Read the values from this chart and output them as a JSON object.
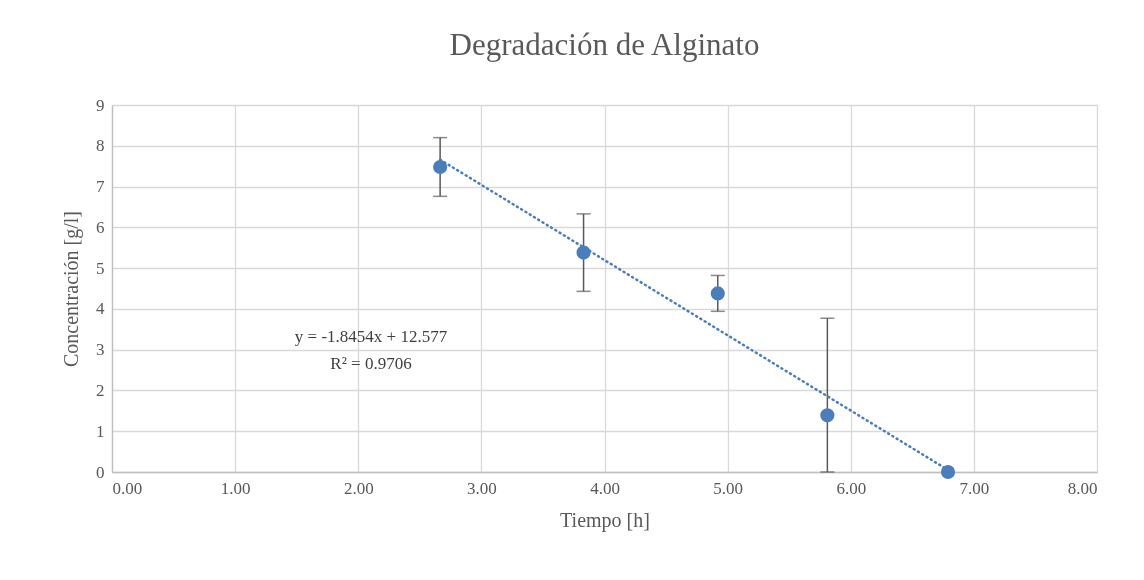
{
  "chart_data": {
    "type": "scatter",
    "title": "Degradación de Alginato",
    "xlabel": "Tiempo [h]",
    "ylabel": "Concentración [g/l]",
    "xlim": [
      0,
      8
    ],
    "xticks": [
      {
        "value": 0,
        "label": "0.00"
      },
      {
        "value": 1,
        "label": "1.00"
      },
      {
        "value": 2,
        "label": "2.00"
      },
      {
        "value": 3,
        "label": "3.00"
      },
      {
        "value": 4,
        "label": "4.00"
      },
      {
        "value": 5,
        "label": "5.00"
      },
      {
        "value": 6,
        "label": "6.00"
      },
      {
        "value": 7,
        "label": "7.00"
      },
      {
        "value": 8,
        "label": "8.00"
      }
    ],
    "ylim": [
      0,
      9
    ],
    "yticks": [
      0,
      1,
      2,
      3,
      4,
      5,
      6,
      7,
      8,
      9
    ],
    "grid": true,
    "marker": "circle",
    "series": [
      {
        "color": "#4a7ebb",
        "x": [
          2.665,
          3.83,
          4.92,
          5.81,
          6.79
        ],
        "values": [
          7.48,
          5.38,
          4.38,
          1.39,
          0
        ],
        "errors": [
          0.72,
          0.95,
          0.44,
          [
            0,
            3.77
          ],
          null
        ]
      },
      {
        "type": "line",
        "color": "#4a7ebb",
        "line_style": "dotted",
        "marker": "none",
        "x": [
          2.665,
          6.79
        ],
        "values": [
          7.66,
          0.05
        ]
      }
    ],
    "annotations": [
      "y = -1.8454x + 12.577",
      "R² = 0.9706"
    ]
  }
}
